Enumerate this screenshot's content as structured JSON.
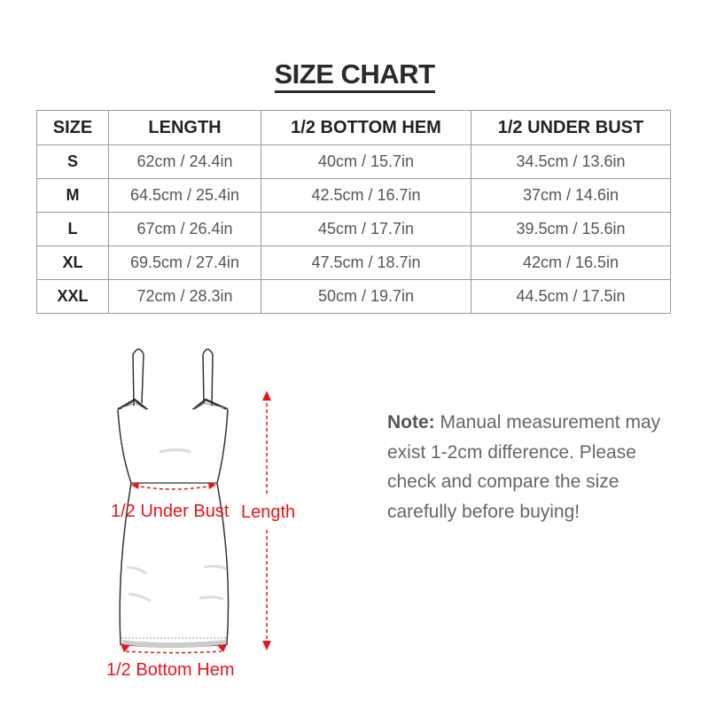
{
  "title": "SIZE CHART",
  "table": {
    "headers": [
      "SIZE",
      "LENGTH",
      "1/2 BOTTOM HEM",
      "1/2 UNDER BUST"
    ],
    "rows": [
      [
        "S",
        "62cm / 24.4in",
        "40cm / 15.7in",
        "34.5cm / 13.6in"
      ],
      [
        "M",
        "64.5cm / 25.4in",
        "42.5cm / 16.7in",
        "37cm / 14.6in"
      ],
      [
        "L",
        "67cm / 26.4in",
        "45cm / 17.7in",
        "39.5cm / 15.6in"
      ],
      [
        "XL",
        "69.5cm / 27.4in",
        "47.5cm / 18.7in",
        "42cm / 16.5in"
      ],
      [
        "XXL",
        "72cm / 28.3in",
        "50cm / 19.7in",
        "44.5cm / 17.5in"
      ]
    ]
  },
  "diagram": {
    "under_bust_label": "1/2 Under Bust",
    "length_label": "Length",
    "bottom_hem_label": "1/2 Bottom Hem",
    "accent_color": "#e8141b"
  },
  "note": {
    "label": "Note:",
    "text": "Manual measurement may exist 1-2cm difference. Please check and compare the size carefully before buying!"
  }
}
